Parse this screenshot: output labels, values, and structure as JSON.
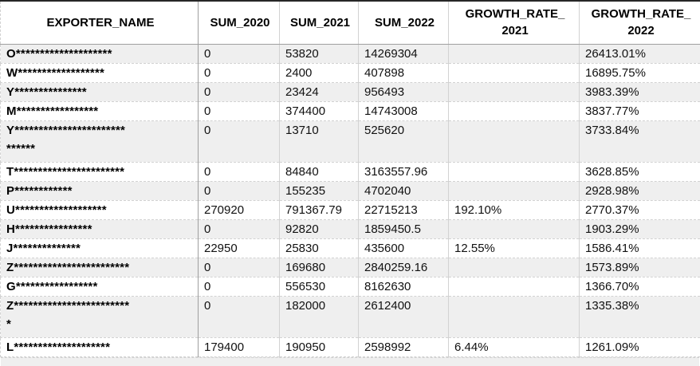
{
  "colors": {
    "row_alt_bg": "#efefef",
    "grid_line": "#d2d2d2",
    "strong_line": "#9f9f9f",
    "top_border": "#262626",
    "text": "#111111"
  },
  "table": {
    "columns": [
      {
        "label": "EXPORTER_NAME"
      },
      {
        "label": "SUM_2020"
      },
      {
        "label": "SUM_2021"
      },
      {
        "label": "SUM_2022"
      },
      {
        "label": "GROWTH_RATE_\n2021"
      },
      {
        "label": "GROWTH_RATE_\n2022"
      }
    ],
    "rows": [
      {
        "exporter": "O********************",
        "sum2020": "0",
        "sum2021": "53820",
        "sum2022": "14269304",
        "gr2021": "",
        "gr2022": "26413.01%"
      },
      {
        "exporter": "W******************",
        "sum2020": "0",
        "sum2021": "2400",
        "sum2022": "407898",
        "gr2021": "",
        "gr2022": "16895.75%"
      },
      {
        "exporter": "Y***************",
        "sum2020": "0",
        "sum2021": "23424",
        "sum2022": "956493",
        "gr2021": "",
        "gr2022": "3983.39%"
      },
      {
        "exporter": "M*****************",
        "sum2020": "0",
        "sum2021": "374400",
        "sum2022": "14743008",
        "gr2021": "",
        "gr2022": "3837.77%"
      },
      {
        "exporter": "Y***********************\n******",
        "sum2020": "0",
        "sum2021": "13710",
        "sum2022": "525620",
        "gr2021": "",
        "gr2022": "3733.84%"
      },
      {
        "exporter": "T***********************",
        "sum2020": "0",
        "sum2021": "84840",
        "sum2022": "3163557.96",
        "gr2021": "",
        "gr2022": "3628.85%"
      },
      {
        "exporter": "P************",
        "sum2020": "0",
        "sum2021": "155235",
        "sum2022": "4702040",
        "gr2021": "",
        "gr2022": "2928.98%"
      },
      {
        "exporter": "U*******************",
        "sum2020": "270920",
        "sum2021": "791367.79",
        "sum2022": "22715213",
        "gr2021": "192.10%",
        "gr2022": "2770.37%"
      },
      {
        "exporter": "H****************",
        "sum2020": "0",
        "sum2021": "92820",
        "sum2022": "1859450.5",
        "gr2021": "",
        "gr2022": "1903.29%"
      },
      {
        "exporter": "J**************",
        "sum2020": "22950",
        "sum2021": "25830",
        "sum2022": "435600",
        "gr2021": "12.55%",
        "gr2022": "1586.41%"
      },
      {
        "exporter": "Z************************",
        "sum2020": "0",
        "sum2021": "169680",
        "sum2022": "2840259.16",
        "gr2021": "",
        "gr2022": "1573.89%"
      },
      {
        "exporter": "G*****************",
        "sum2020": "0",
        "sum2021": "556530",
        "sum2022": "8162630",
        "gr2021": "",
        "gr2022": "1366.70%"
      },
      {
        "exporter": "Z************************\n*",
        "sum2020": "0",
        "sum2021": "182000",
        "sum2022": "2612400",
        "gr2021": "",
        "gr2022": "1335.38%"
      },
      {
        "exporter": "L********************",
        "sum2020": "179400",
        "sum2021": "190950",
        "sum2022": "2598992",
        "gr2021": "6.44%",
        "gr2022": "1261.09%"
      }
    ]
  }
}
